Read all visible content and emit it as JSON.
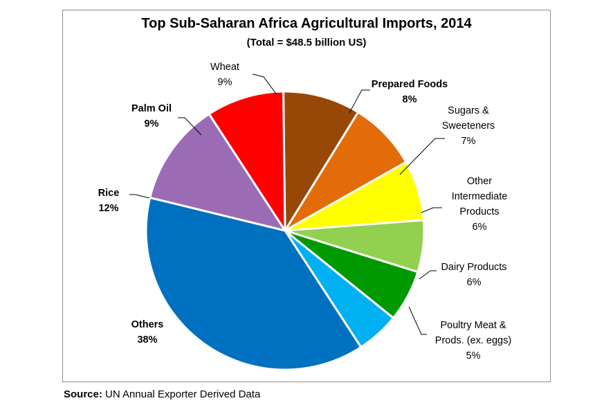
{
  "source": {
    "label": "Source",
    "separator": ":",
    "text": " UN Annual Exporter Derived Data"
  },
  "chart_data": {
    "type": "pie",
    "title": "Top Sub-Saharan Africa Agricultural Imports, 2014",
    "subtitle": "(Total = $48.5 billion US)",
    "slices": [
      {
        "name": "Wheat",
        "value": 9,
        "label": "9%",
        "color": "#974806",
        "bold": false
      },
      {
        "name": "Prepared Foods",
        "value": 8,
        "label": "8%",
        "color": "#E36C09",
        "bold": true
      },
      {
        "name": "Sugars & Sweeteners",
        "value": 7,
        "label": "7%",
        "color": "#FFFF00",
        "bold": false
      },
      {
        "name": "Other Intermediate Products",
        "value": 6,
        "label": "6%",
        "color": "#92D050",
        "bold": false
      },
      {
        "name": "Dairy Products",
        "value": 6,
        "label": "6%",
        "color": "#009900",
        "bold": false
      },
      {
        "name": "Poultry Meat & Prods. (ex. eggs)",
        "value": 5,
        "label": "5%",
        "color": "#00B0F0",
        "bold": false
      },
      {
        "name": "Others",
        "value": 38,
        "label": "38%",
        "color": "#0070C0",
        "bold": true
      },
      {
        "name": "Rice",
        "value": 12,
        "label": "12%",
        "color": "#9B6CB5",
        "bold": true
      },
      {
        "name": "Palm Oil",
        "value": 9,
        "label": "9%",
        "color": "#FF0000",
        "bold": true
      }
    ]
  }
}
